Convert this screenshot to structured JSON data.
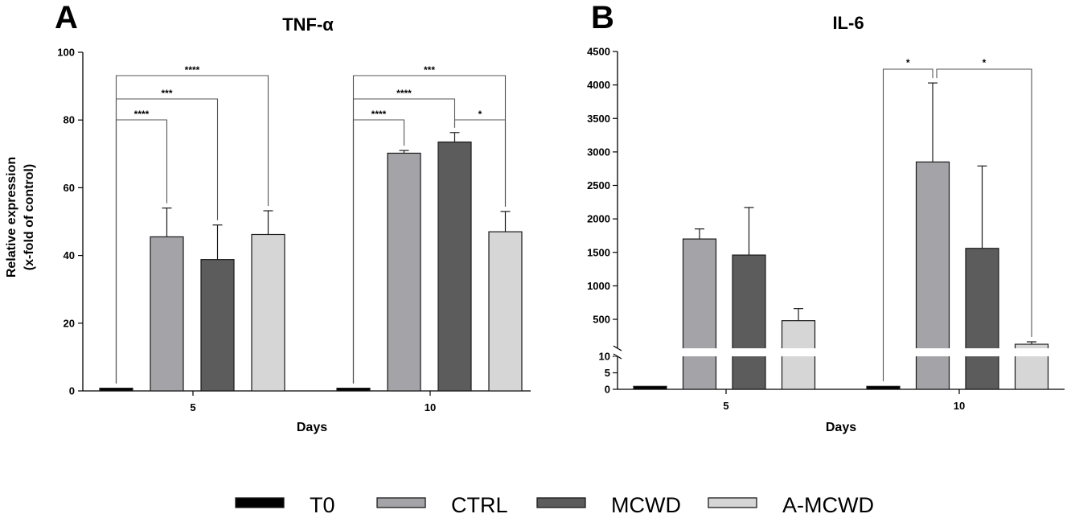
{
  "chart_data": [
    {
      "panel": "A",
      "type": "bar",
      "title": "TNF-α",
      "xlabel": "Days",
      "ylabel": [
        "Relative expression",
        "(x-fold of control)"
      ],
      "categories": [
        "5",
        "10"
      ],
      "ylim": [
        0,
        100
      ],
      "yticks": [
        "0",
        "20",
        "40",
        "60",
        "80",
        "100"
      ],
      "series": [
        {
          "name": "T0",
          "values": [
            0.8,
            0.8
          ],
          "errors": [
            0,
            0
          ]
        },
        {
          "name": "CTRL",
          "values": [
            45.5,
            70.2
          ],
          "errors": [
            8.5,
            0.8
          ]
        },
        {
          "name": "MCWD",
          "values": [
            38.8,
            73.5
          ],
          "errors": [
            10.2,
            2.8
          ]
        },
        {
          "name": "A-MCWD",
          "values": [
            46.2,
            47.0
          ],
          "errors": [
            7.0,
            6.0
          ]
        }
      ],
      "significance": [
        {
          "category": "5",
          "from": "T0",
          "to": "CTRL",
          "label": "****"
        },
        {
          "category": "5",
          "from": "T0",
          "to": "MCWD",
          "label": "***"
        },
        {
          "category": "5",
          "from": "T0",
          "to": "A-MCWD",
          "label": "****"
        },
        {
          "category": "10",
          "from": "T0",
          "to": "CTRL",
          "label": "****"
        },
        {
          "category": "10",
          "from": "T0",
          "to": "MCWD",
          "label": "****"
        },
        {
          "category": "10",
          "from": "T0",
          "to": "A-MCWD",
          "label": "***"
        },
        {
          "category": "10",
          "from": "MCWD",
          "to": "A-MCWD",
          "label": "*"
        }
      ]
    },
    {
      "panel": "B",
      "type": "bar",
      "title": "IL-6",
      "xlabel": "Days",
      "categories": [
        "5",
        "10"
      ],
      "axis_break": {
        "lower": [
          0,
          10
        ],
        "upper": [
          300,
          4500
        ]
      },
      "yticks_lower": [
        "0",
        "5",
        "10"
      ],
      "yticks_upper": [
        "500",
        "1000",
        "1500",
        "2000",
        "2500",
        "3000",
        "3500",
        "4000",
        "4500"
      ],
      "series": [
        {
          "name": "T0",
          "values": [
            0.9,
            0.9
          ],
          "errors": [
            0,
            0
          ]
        },
        {
          "name": "CTRL",
          "values": [
            1700,
            2850
          ],
          "errors": [
            150,
            1180
          ]
        },
        {
          "name": "MCWD",
          "values": [
            1460,
            1560
          ],
          "errors": [
            710,
            1230
          ]
        },
        {
          "name": "A-MCWD",
          "values": [
            480,
            12
          ],
          "errors": [
            180,
            3
          ]
        }
      ],
      "significance": [
        {
          "category": "10",
          "from": "T0",
          "to": "CTRL",
          "label": "*"
        },
        {
          "category": "10",
          "from": "CTRL",
          "to": "A-MCWD",
          "label": "*"
        }
      ]
    }
  ],
  "legend": [
    {
      "name": "T0",
      "color": "#000000"
    },
    {
      "name": "CTRL",
      "color": "#a3a3a8"
    },
    {
      "name": "MCWD",
      "color": "#5c5c5c"
    },
    {
      "name": "A-MCWD",
      "color": "#d6d6d6"
    }
  ]
}
